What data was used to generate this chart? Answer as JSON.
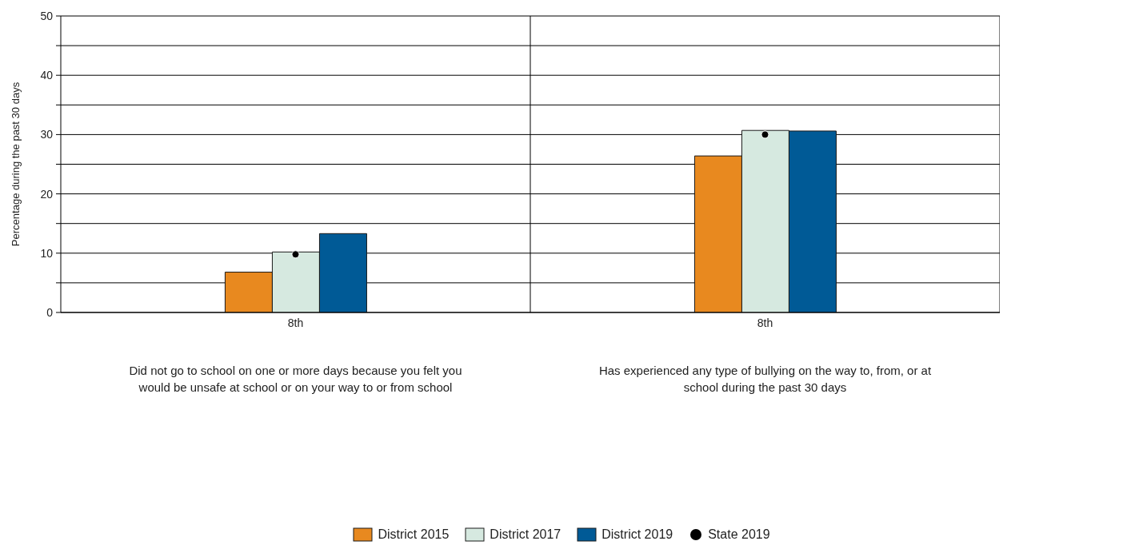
{
  "chart_data": {
    "type": "bar",
    "categories": [
      "8th",
      "8th"
    ],
    "ylabel": "Percentage during the past 30 days",
    "ylim": [
      0,
      50
    ],
    "yticks": [
      0,
      {
        "value": 5,
        "label": null
      },
      10,
      {
        "value": 15,
        "label": null
      },
      20,
      {
        "value": 25,
        "label": null
      },
      30,
      {
        "value": 35,
        "label": null
      },
      40,
      {
        "value": 45,
        "label": null
      },
      50
    ],
    "grid": "y",
    "legend": "bottom",
    "annotations": [
      "Did not go to school on one or more days because you felt you would be unsafe at school or on your way to or from school",
      "Has experienced any type of bullying on the way to, from, or at school during the past 30 days"
    ],
    "series": [
      {
        "name": "District 2015",
        "color": "#e8891f",
        "values": [
          6.8,
          26.4
        ]
      },
      {
        "name": "District 2017",
        "color": "#d6e9e0",
        "values": [
          10.2,
          30.7
        ]
      },
      {
        "name": "District 2019",
        "color": "#005a96",
        "values": [
          13.3,
          30.6
        ]
      },
      {
        "name": "State 2019",
        "type": "scatter",
        "marker": "circle",
        "color": "#000000",
        "values": [
          9.8,
          30.0
        ]
      }
    ]
  }
}
